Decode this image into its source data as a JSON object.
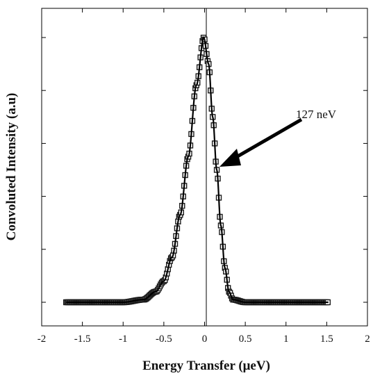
{
  "chart_data": {
    "type": "scatter",
    "title": "",
    "xlabel": "Energy Transfer (μeV)",
    "ylabel": "Convoluted Intensity (a.u)",
    "xlim": [
      -2,
      2
    ],
    "ylim": [
      0,
      1.05
    ],
    "x_ticks": [
      -2,
      -1.5,
      -1,
      -0.5,
      0,
      0.5,
      1,
      1.5,
      2
    ],
    "x_tick_labels": [
      "-2",
      "-1.5",
      "-1",
      "-0.5",
      "0",
      "0.5",
      "1",
      "1.5",
      "2"
    ],
    "y_tick_labels_shown": false,
    "y_ticks": [
      0.2,
      0.4,
      0.6,
      0.8,
      1.0
    ],
    "grid": false,
    "legend": "none",
    "marker_color": "#1a1a1a",
    "line_color": "#000000",
    "x_range_of_data": [
      -1.7,
      1.52
    ],
    "peak": {
      "x": -0.01,
      "y": 1.0
    },
    "baseline": 0,
    "points_sampled": [
      {
        "x": -1.7,
        "y": 0.0
      },
      {
        "x": -1.0,
        "y": 0.0
      },
      {
        "x": -0.75,
        "y": 0.01
      },
      {
        "x": -0.6,
        "y": 0.04
      },
      {
        "x": -0.5,
        "y": 0.08
      },
      {
        "x": -0.4,
        "y": 0.17
      },
      {
        "x": -0.3,
        "y": 0.33
      },
      {
        "x": -0.2,
        "y": 0.55
      },
      {
        "x": -0.1,
        "y": 0.82
      },
      {
        "x": -0.01,
        "y": 1.0
      },
      {
        "x": 0.05,
        "y": 0.9
      },
      {
        "x": 0.1,
        "y": 0.7
      },
      {
        "x": 0.15,
        "y": 0.5
      },
      {
        "x": 0.2,
        "y": 0.29
      },
      {
        "x": 0.25,
        "y": 0.13
      },
      {
        "x": 0.3,
        "y": 0.04
      },
      {
        "x": 0.35,
        "y": 0.01
      },
      {
        "x": 0.5,
        "y": 0.0
      },
      {
        "x": 1.52,
        "y": 0.0
      }
    ],
    "annotations": [
      {
        "text": "127 neV",
        "arrow_to": {
          "x": 0.13,
          "y": 0.56
        }
      }
    ]
  }
}
